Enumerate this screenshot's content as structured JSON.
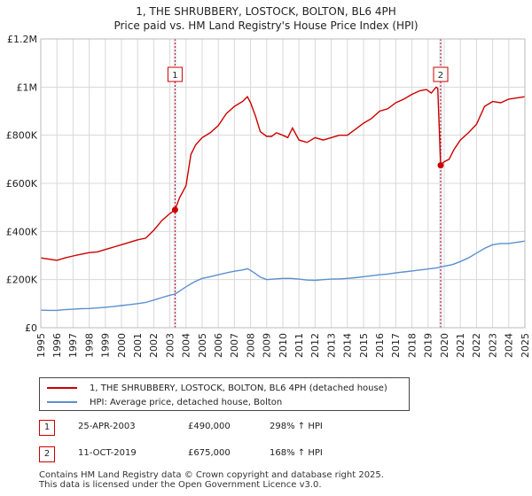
{
  "title_line1": "1, THE SHRUBBERY, LOSTOCK, BOLTON, BL6 4PH",
  "title_line2": "Price paid vs. HM Land Registry's House Price Index (HPI)",
  "colors": {
    "property": "#cc0000",
    "hpi": "#5b8fd0",
    "grid": "#d8d8d8",
    "sale_line": "#cc0000"
  },
  "chart_data": {
    "type": "line",
    "xlim": [
      1995,
      2025
    ],
    "ylim": [
      0,
      1200000
    ],
    "y_ticks": [
      0,
      200000,
      400000,
      600000,
      800000,
      1000000,
      1200000
    ],
    "y_tick_labels": [
      "£0",
      "£200K",
      "£400K",
      "£600K",
      "£800K",
      "£1M",
      "£1.2M"
    ],
    "x_ticks": [
      1995,
      1996,
      1997,
      1998,
      1999,
      2000,
      2001,
      2002,
      2003,
      2004,
      2005,
      2006,
      2007,
      2008,
      2009,
      2010,
      2011,
      2012,
      2013,
      2014,
      2015,
      2016,
      2017,
      2018,
      2019,
      2020,
      2021,
      2022,
      2023,
      2024,
      2025
    ],
    "x_tick_labels": [
      "1995",
      "1996",
      "1997",
      "1998",
      "1999",
      "2000",
      "2001",
      "2002",
      "2003",
      "2004",
      "2005",
      "2006",
      "2007",
      "2008",
      "2009",
      "2010",
      "2011",
      "2012",
      "2013",
      "2014",
      "2015",
      "2016",
      "2017",
      "2018",
      "2019",
      "2020",
      "2021",
      "2022",
      "2023",
      "2024",
      "2025"
    ],
    "series": [
      {
        "name": "1, THE SHRUBBERY, LOSTOCK, BOLTON, BL6 4PH (detached house)",
        "x": [
          1995.0,
          1995.5,
          1996.0,
          1996.5,
          1997.0,
          1997.5,
          1998.0,
          1998.5,
          1999.0,
          1999.5,
          2000.0,
          2000.5,
          2001.0,
          2001.5,
          2002.0,
          2002.5,
          2003.0,
          2003.32,
          2003.6,
          2004.0,
          2004.3,
          2004.6,
          2005.0,
          2005.5,
          2006.0,
          2006.5,
          2007.0,
          2007.5,
          2007.8,
          2008.0,
          2008.3,
          2008.6,
          2009.0,
          2009.3,
          2009.6,
          2010.0,
          2010.3,
          2010.6,
          2011.0,
          2011.5,
          2012.0,
          2012.5,
          2013.0,
          2013.5,
          2014.0,
          2014.5,
          2015.0,
          2015.5,
          2016.0,
          2016.5,
          2017.0,
          2017.5,
          2018.0,
          2018.5,
          2018.9,
          2019.2,
          2019.5,
          2019.6,
          2019.78,
          2020.0,
          2020.3,
          2020.6,
          2021.0,
          2021.5,
          2022.0,
          2022.5,
          2023.0,
          2023.5,
          2024.0,
          2024.5,
          2025.0
        ],
        "y": [
          290000,
          285000,
          280000,
          290000,
          298000,
          305000,
          312000,
          315000,
          325000,
          335000,
          345000,
          355000,
          365000,
          372000,
          405000,
          445000,
          475000,
          490000,
          540000,
          590000,
          720000,
          760000,
          790000,
          810000,
          840000,
          890000,
          920000,
          940000,
          960000,
          935000,
          880000,
          815000,
          795000,
          795000,
          810000,
          800000,
          790000,
          830000,
          780000,
          770000,
          790000,
          780000,
          790000,
          800000,
          800000,
          825000,
          850000,
          870000,
          900000,
          910000,
          935000,
          950000,
          970000,
          985000,
          990000,
          975000,
          1000000,
          995000,
          675000,
          690000,
          700000,
          740000,
          780000,
          810000,
          845000,
          920000,
          940000,
          935000,
          950000,
          955000,
          960000
        ]
      },
      {
        "name": "HPI: Average price, detached house, Bolton",
        "x": [
          1995.0,
          1995.5,
          1996.0,
          1996.5,
          1997.0,
          1997.5,
          1998.0,
          1998.5,
          1999.0,
          1999.5,
          2000.0,
          2000.5,
          2001.0,
          2001.5,
          2002.0,
          2002.5,
          2003.0,
          2003.32,
          2003.6,
          2004.0,
          2004.5,
          2005.0,
          2005.5,
          2006.0,
          2006.5,
          2007.0,
          2007.5,
          2007.8,
          2008.0,
          2008.3,
          2008.6,
          2009.0,
          2009.5,
          2010.0,
          2010.5,
          2011.0,
          2011.5,
          2012.0,
          2012.5,
          2013.0,
          2013.5,
          2014.0,
          2014.5,
          2015.0,
          2015.5,
          2016.0,
          2016.5,
          2017.0,
          2017.5,
          2018.0,
          2018.5,
          2019.0,
          2019.5,
          2019.78,
          2020.0,
          2020.5,
          2021.0,
          2021.5,
          2022.0,
          2022.5,
          2023.0,
          2023.5,
          2024.0,
          2024.5,
          2025.0
        ],
        "y": [
          73000,
          72000,
          72000,
          75000,
          77000,
          79000,
          80000,
          82000,
          85000,
          88000,
          92000,
          96000,
          100000,
          105000,
          115000,
          125000,
          135000,
          140000,
          152000,
          170000,
          190000,
          205000,
          212000,
          220000,
          228000,
          235000,
          240000,
          245000,
          238000,
          225000,
          210000,
          200000,
          203000,
          205000,
          205000,
          202000,
          198000,
          197000,
          200000,
          202000,
          203000,
          205000,
          208000,
          212000,
          216000,
          220000,
          223000,
          228000,
          232000,
          236000,
          240000,
          244000,
          248000,
          252000,
          256000,
          262000,
          275000,
          290000,
          310000,
          330000,
          345000,
          350000,
          350000,
          355000,
          360000
        ]
      }
    ],
    "sale_points": [
      {
        "label": "1",
        "x": 2003.32,
        "y": 490000
      },
      {
        "label": "2",
        "x": 2019.78,
        "y": 675000
      }
    ]
  },
  "legend": {
    "property": "1, THE SHRUBBERY, LOSTOCK, BOLTON, BL6 4PH (detached house)",
    "hpi": "HPI: Average price, detached house, Bolton"
  },
  "sales": [
    {
      "marker": "1",
      "date": "25-APR-2003",
      "price": "£490,000",
      "hpi": "298% ↑ HPI"
    },
    {
      "marker": "2",
      "date": "11-OCT-2019",
      "price": "£675,000",
      "hpi": "168% ↑ HPI"
    }
  ],
  "footer_line1": "Contains HM Land Registry data © Crown copyright and database right 2025.",
  "footer_line2": "This data is licensed under the Open Government Licence v3.0."
}
